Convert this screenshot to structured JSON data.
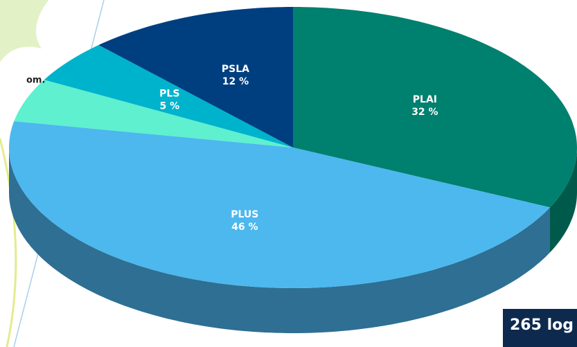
{
  "chart_data": {
    "type": "pie",
    "categories": [
      "PLAI",
      "PLUS",
      null,
      "PLS",
      "PSLA"
    ],
    "values": [
      32,
      46,
      5,
      5,
      12
    ],
    "value_labels": [
      "32 %",
      "46 %",
      null,
      "5 %",
      "12 %"
    ],
    "colors": [
      "#00806e",
      "#4cb8ee",
      "#5ef0cf",
      "#00b3cc",
      "#003f7f"
    ],
    "side_colors": [
      "#005a4c",
      "#2e6f93",
      "#3aa98f",
      "#007b8c",
      "#002a55"
    ],
    "annotations": [
      "om.",
      "265 log"
    ]
  }
}
